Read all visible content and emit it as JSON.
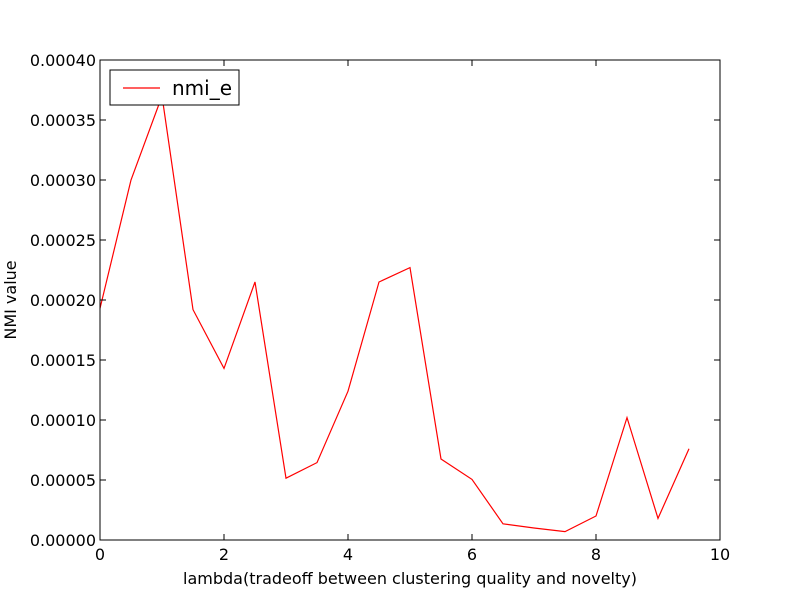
{
  "chart_data": {
    "type": "line",
    "xlabel": "lambda(tradeoff between clustering quality and novelty)",
    "ylabel": "NMI value",
    "xlim": [
      0,
      10
    ],
    "ylim": [
      0,
      0.0004
    ],
    "x_ticks": [
      0,
      2,
      4,
      6,
      8,
      10
    ],
    "x_tick_labels": [
      "0",
      "2",
      "4",
      "6",
      "8",
      "10"
    ],
    "y_ticks": [
      0,
      5e-05,
      0.0001,
      0.00015,
      0.0002,
      0.00025,
      0.0003,
      0.00035,
      0.0004
    ],
    "y_tick_labels": [
      "0.00000",
      "0.00005",
      "0.00010",
      "0.00015",
      "0.00020",
      "0.00025",
      "0.00030",
      "0.00035",
      "0.00040"
    ],
    "grid": false,
    "legend": {
      "placement": "upper-left",
      "entries": [
        "nmi_e"
      ]
    },
    "series": [
      {
        "name": "nmi_e",
        "color": "#ff0000",
        "x": [
          0,
          0.5,
          1.0,
          1.5,
          2.0,
          2.5,
          3.0,
          3.5,
          4.0,
          4.5,
          5.0,
          5.5,
          6.0,
          6.5,
          7.0,
          7.5,
          8.0,
          8.5,
          9.0,
          9.5
        ],
        "y": [
          0.000193,
          0.0003,
          0.00037,
          0.000192,
          0.000143,
          0.000215,
          5.15e-05,
          6.45e-05,
          0.000124,
          0.000215,
          0.000227,
          6.75e-05,
          5.05e-05,
          1.35e-05,
          1e-05,
          7e-06,
          2e-05,
          0.000102,
          1.8e-05,
          7.6e-05
        ]
      }
    ]
  }
}
